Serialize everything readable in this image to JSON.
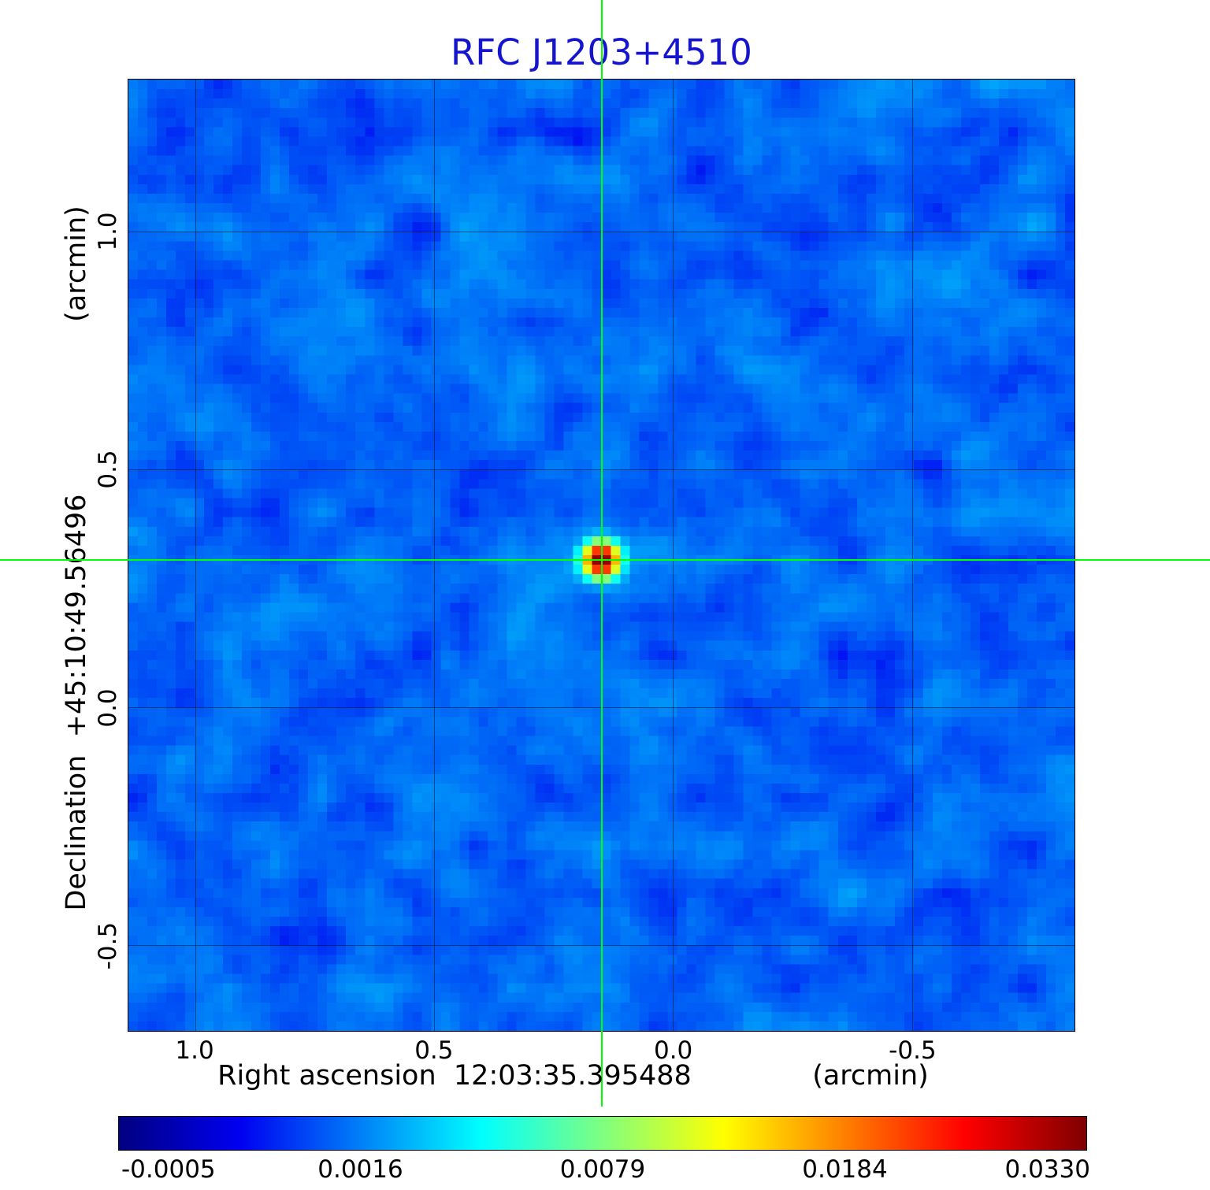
{
  "title": "RFC J1203+4510",
  "colors": {
    "title": "#1515cd",
    "crosshair": "#00ff00",
    "grid": "rgba(0,0,0,0.45)",
    "frame": "#000000"
  },
  "axes": {
    "x_label": "Right ascension  12:03:35.395488",
    "x_unit": "(arcmin)",
    "y_label": "Declination  +45:10:49.56496",
    "y_unit": "(arcmin)"
  },
  "colorbar": {
    "labels": [
      "-0.0005",
      "0.0016",
      "0.0079",
      "0.0184",
      "0.0330"
    ]
  },
  "chart_data": {
    "type": "heatmap",
    "title": "RFC J1203+4510",
    "xlabel": "Right ascension 12:03:35.395488 (arcmin)",
    "ylabel": "Declination +45:10:49.56496 (arcmin)",
    "x_axis": {
      "ticks": [
        1.0,
        0.5,
        0.0,
        -0.5
      ],
      "range": [
        1.14,
        -0.84
      ]
    },
    "y_axis": {
      "ticks": [
        1.0,
        0.5,
        0.0,
        -0.5
      ],
      "range": [
        -0.68,
        1.32
      ]
    },
    "value_range": [
      -0.0005,
      0.033
    ],
    "stretch": "sqrt",
    "colorbar_tick_values": [
      -0.0005,
      0.0016,
      0.0079,
      0.0184,
      0.033
    ],
    "colormap": {
      "name": "jet",
      "stops": [
        {
          "t": 0.0,
          "c": "#000080"
        },
        {
          "t": 0.125,
          "c": "#0000f1"
        },
        {
          "t": 0.375,
          "c": "#00ffff"
        },
        {
          "t": 0.625,
          "c": "#ffff00"
        },
        {
          "t": 0.875,
          "c": "#ff0000"
        },
        {
          "t": 1.0,
          "c": "#800000"
        }
      ]
    },
    "resolution": 100,
    "seed": 1203451,
    "background": {
      "mean": 0.0012,
      "std": 0.0009
    },
    "source": {
      "ra_offset": 0.15,
      "dec_offset": 0.31,
      "peak": 0.033,
      "sigma_arcmin": 0.023
    },
    "crosshair": {
      "ra_offset": 0.15,
      "dec_offset": 0.31
    },
    "grid": true
  }
}
